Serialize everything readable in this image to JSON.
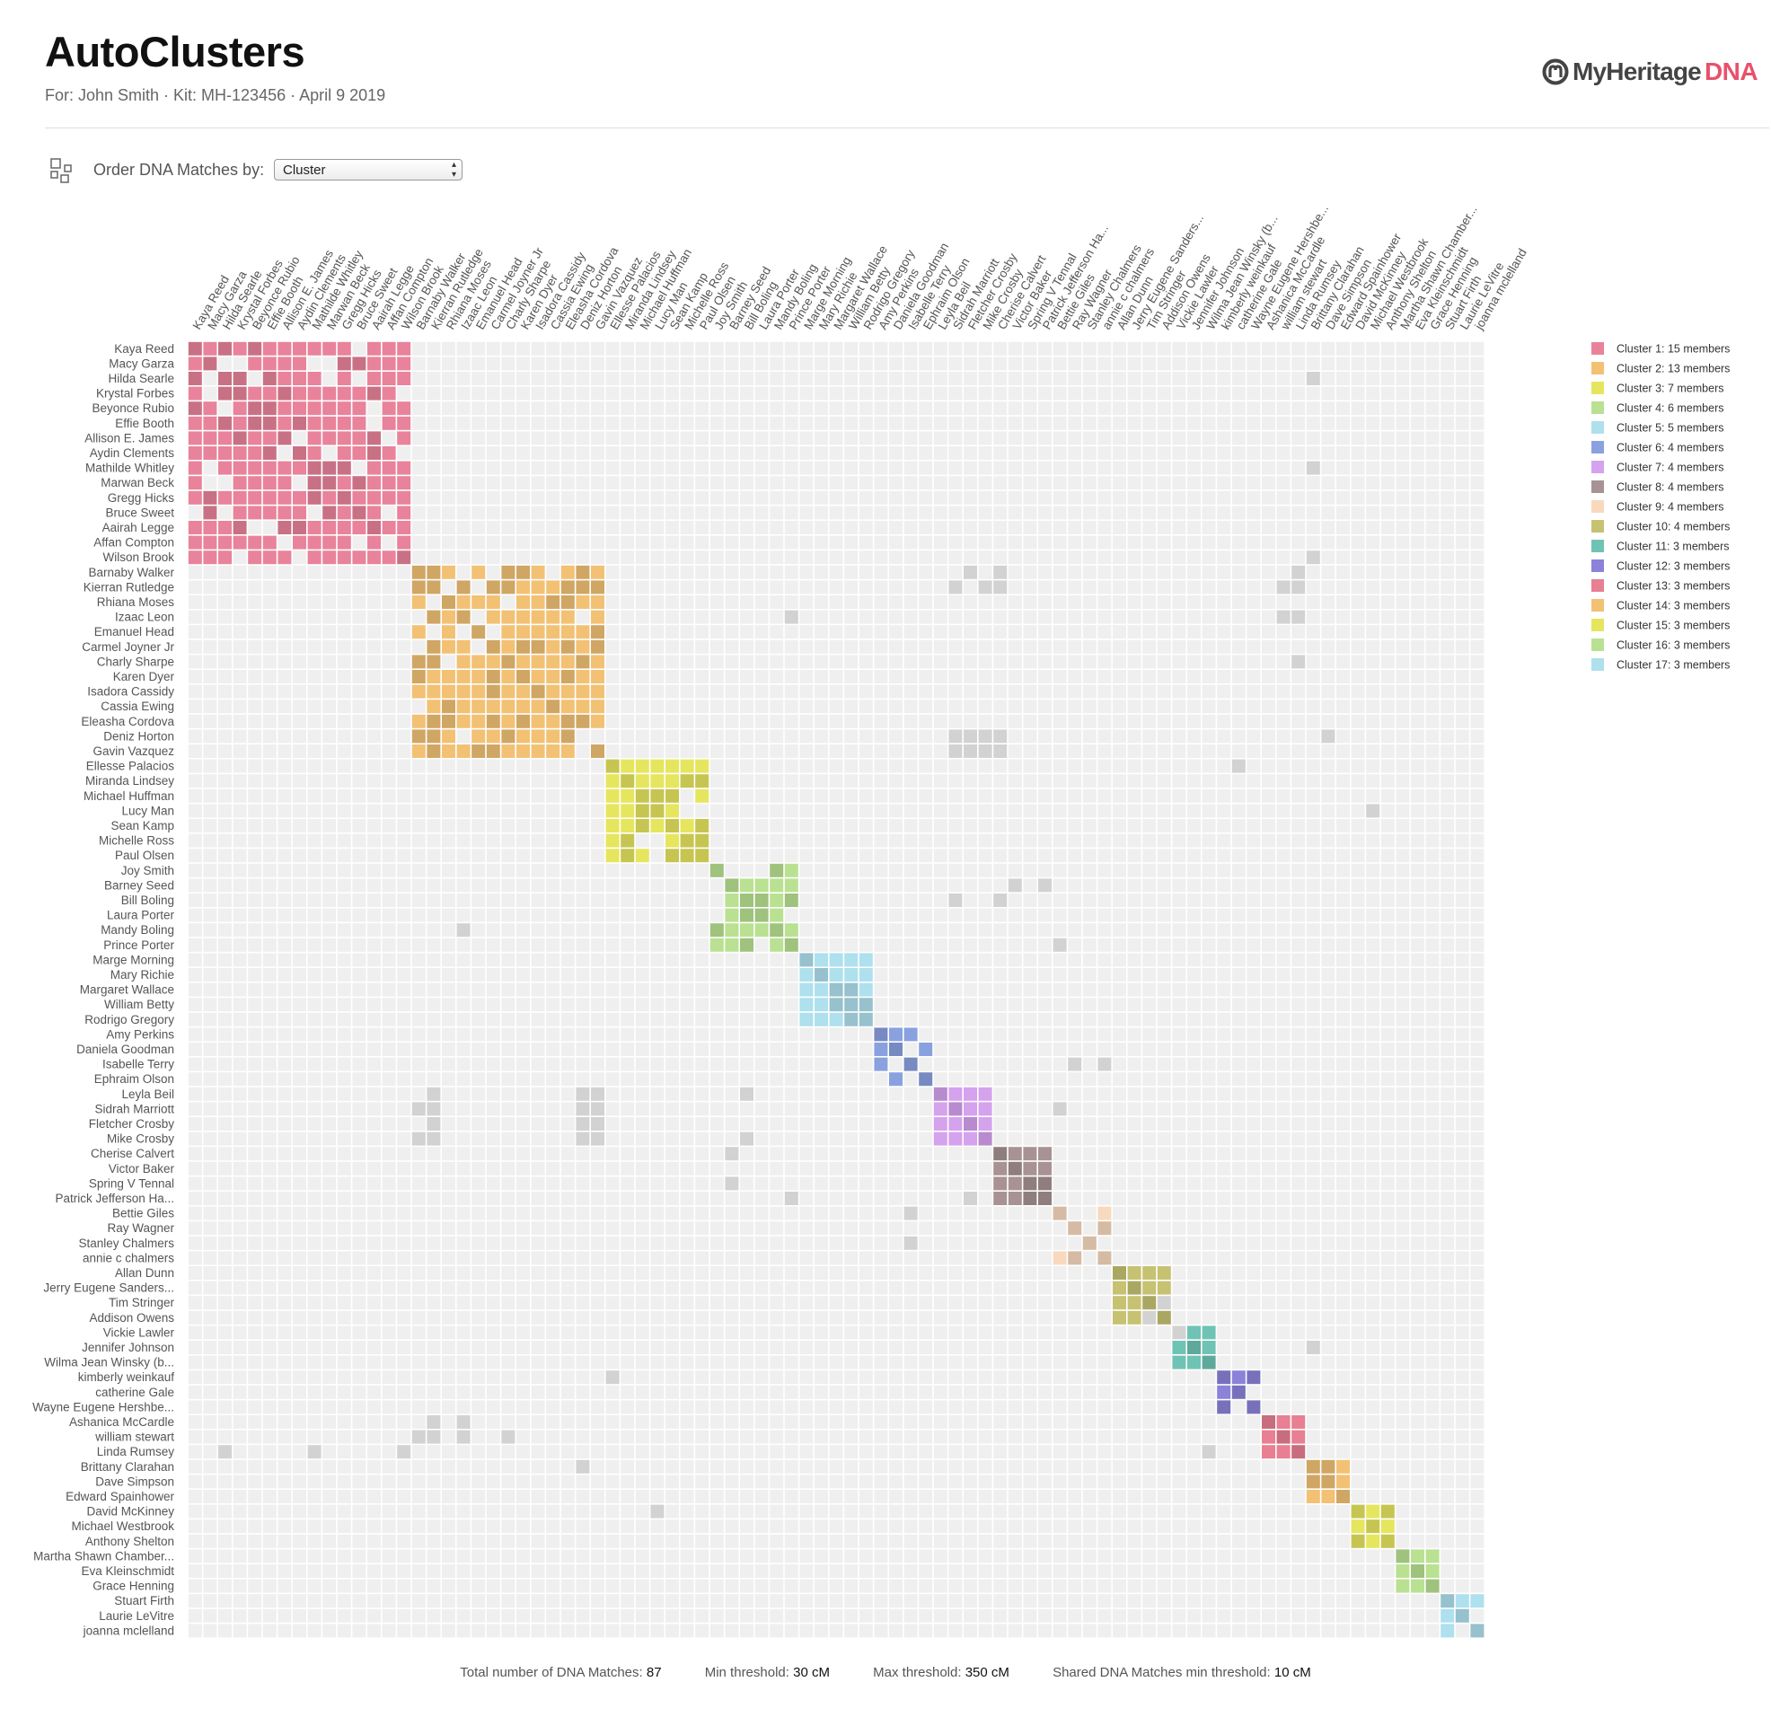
{
  "header": {
    "title": "AutoClusters",
    "subtitle": "For: John Smith · Kit: MH-123456 · April 9 2019",
    "logo_text": "MyHeritage",
    "logo_dna": "DNA"
  },
  "controls": {
    "order_label": "Order DNA Matches by:",
    "order_value": "Cluster"
  },
  "matches": [
    "Kaya Reed",
    "Macy Garza",
    "Hilda Searle",
    "Krystal Forbes",
    "Beyonce Rubio",
    "Effie Booth",
    "Allison E. James",
    "Aydin Clements",
    "Mathilde Whitley",
    "Marwan Beck",
    "Gregg Hicks",
    "Bruce Sweet",
    "Aairah Legge",
    "Affan Compton",
    "Wilson Brook",
    "Barnaby Walker",
    "Kierran Rutledge",
    "Rhiana Moses",
    "Izaac Leon",
    "Emanuel Head",
    "Carmel Joyner Jr",
    "Charly Sharpe",
    "Karen Dyer",
    "Isadora Cassidy",
    "Cassia Ewing",
    "Eleasha Cordova",
    "Deniz Horton",
    "Gavin Vazquez",
    "Ellesse Palacios",
    "Miranda Lindsey",
    "Michael Huffman",
    "Lucy Man",
    "Sean Kamp",
    "Michelle Ross",
    "Paul Olsen",
    "Joy Smith",
    "Barney Seed",
    "Bill Boling",
    "Laura Porter",
    "Mandy Boling",
    "Prince Porter",
    "Marge Morning",
    "Mary Richie",
    "Margaret Wallace",
    "William Betty",
    "Rodrigo Gregory",
    "Amy Perkins",
    "Daniela Goodman",
    "Isabelle Terry",
    "Ephraim Olson",
    "Leyla Beil",
    "Sidrah Marriott",
    "Fletcher Crosby",
    "Mike Crosby",
    "Cherise Calvert",
    "Victor Baker",
    "Spring V Tennal",
    "Patrick Jefferson Ha...",
    "Bettie Giles",
    "Ray Wagner",
    "Stanley Chalmers",
    "annie c chalmers",
    "Allan Dunn",
    "Jerry Eugene Sanders...",
    "Tim Stringer",
    "Addison Owens",
    "Vickie Lawler",
    "Jennifer Johnson",
    "Wilma Jean Winsky (b...",
    "kimberly weinkauf",
    "catherine Gale",
    "Wayne Eugene Hershbe...",
    "Ashanica McCardle",
    "william stewart",
    "Linda Rumsey",
    "Brittany Clarahan",
    "Dave Simpson",
    "Edward Spainhower",
    "David McKinney",
    "Michael Westbrook",
    "Anthony Shelton",
    "Martha Shawn Chamber...",
    "Eva Kleinschmidt",
    "Grace Henning",
    "Stuart Firth",
    "Laurie LeVitre",
    "joanna mclelland"
  ],
  "clusters": [
    {
      "label": "Cluster 1: 15 members",
      "color": "#e8839b",
      "members": 15
    },
    {
      "label": "Cluster 2: 13 members",
      "color": "#f2c174",
      "members": 13
    },
    {
      "label": "Cluster 3: 7 members",
      "color": "#e6e55e",
      "members": 7
    },
    {
      "label": "Cluster 4: 6 members",
      "color": "#b9e191",
      "members": 6
    },
    {
      "label": "Cluster 5: 5 members",
      "color": "#aee0ee",
      "members": 5
    },
    {
      "label": "Cluster 6: 4 members",
      "color": "#8aa1e0",
      "members": 4
    },
    {
      "label": "Cluster 7: 4 members",
      "color": "#d5a2ee",
      "members": 4
    },
    {
      "label": "Cluster 8: 4 members",
      "color": "#a89294",
      "members": 4
    },
    {
      "label": "Cluster 9: 4 members",
      "color": "#f8d9bd",
      "members": 4
    },
    {
      "label": "Cluster 10: 4 members",
      "color": "#c6c272",
      "members": 4
    },
    {
      "label": "Cluster 11: 3 members",
      "color": "#6fc3b5",
      "members": 3
    },
    {
      "label": "Cluster 12: 3 members",
      "color": "#8c82d9",
      "members": 3
    },
    {
      "label": "Cluster 13: 3 members",
      "color": "#e87f92",
      "members": 3
    },
    {
      "label": "Cluster 14: 3 members",
      "color": "#f2c174",
      "members": 3
    },
    {
      "label": "Cluster 15: 3 members",
      "color": "#e6e55e",
      "members": 3
    },
    {
      "label": "Cluster 16: 3 members",
      "color": "#b9e191",
      "members": 3
    },
    {
      "label": "Cluster 17: 3 members",
      "color": "#aee0ee",
      "members": 3
    }
  ],
  "grey_cells": [
    [
      2,
      75
    ],
    [
      8,
      75
    ],
    [
      14,
      75
    ],
    [
      15,
      52
    ],
    [
      15,
      54
    ],
    [
      15,
      74
    ],
    [
      16,
      51
    ],
    [
      16,
      53
    ],
    [
      16,
      54
    ],
    [
      16,
      73
    ],
    [
      16,
      74
    ],
    [
      18,
      40
    ],
    [
      18,
      73
    ],
    [
      18,
      74
    ],
    [
      21,
      74
    ],
    [
      26,
      76
    ],
    [
      26,
      51
    ],
    [
      26,
      52
    ],
    [
      26,
      53
    ],
    [
      26,
      54
    ],
    [
      27,
      51
    ],
    [
      27,
      52
    ],
    [
      27,
      53
    ],
    [
      27,
      54
    ],
    [
      28,
      70
    ],
    [
      31,
      79
    ],
    [
      36,
      55
    ],
    [
      36,
      57
    ],
    [
      37,
      51
    ],
    [
      37,
      54
    ],
    [
      39,
      18
    ],
    [
      40,
      58
    ],
    [
      48,
      59
    ],
    [
      48,
      61
    ],
    [
      50,
      16
    ],
    [
      50,
      26
    ],
    [
      50,
      27
    ],
    [
      50,
      37
    ],
    [
      51,
      15
    ],
    [
      51,
      16
    ],
    [
      51,
      26
    ],
    [
      51,
      27
    ],
    [
      51,
      58
    ],
    [
      52,
      16
    ],
    [
      52,
      26
    ],
    [
      52,
      27
    ],
    [
      53,
      15
    ],
    [
      53,
      16
    ],
    [
      53,
      26
    ],
    [
      53,
      27
    ],
    [
      53,
      37
    ],
    [
      54,
      36
    ],
    [
      56,
      36
    ],
    [
      57,
      40
    ],
    [
      57,
      52
    ],
    [
      58,
      48
    ],
    [
      60,
      48
    ],
    [
      64,
      65
    ],
    [
      65,
      64
    ],
    [
      66,
      66
    ],
    [
      67,
      75
    ],
    [
      69,
      28
    ],
    [
      72,
      16
    ],
    [
      72,
      18
    ],
    [
      73,
      15
    ],
    [
      73,
      16
    ],
    [
      73,
      18
    ],
    [
      73,
      21
    ],
    [
      74,
      2
    ],
    [
      74,
      8
    ],
    [
      74,
      14
    ],
    [
      74,
      68
    ],
    [
      75,
      26
    ],
    [
      78,
      31
    ]
  ],
  "footer": {
    "total_label": "Total number of DNA Matches:",
    "total_value": "87",
    "min_label": "Min threshold:",
    "min_value": "30 cM",
    "max_label": "Max threshold:",
    "max_value": "350 cM",
    "shared_label": "Shared DNA Matches min threshold:",
    "shared_value": "10 cM"
  }
}
